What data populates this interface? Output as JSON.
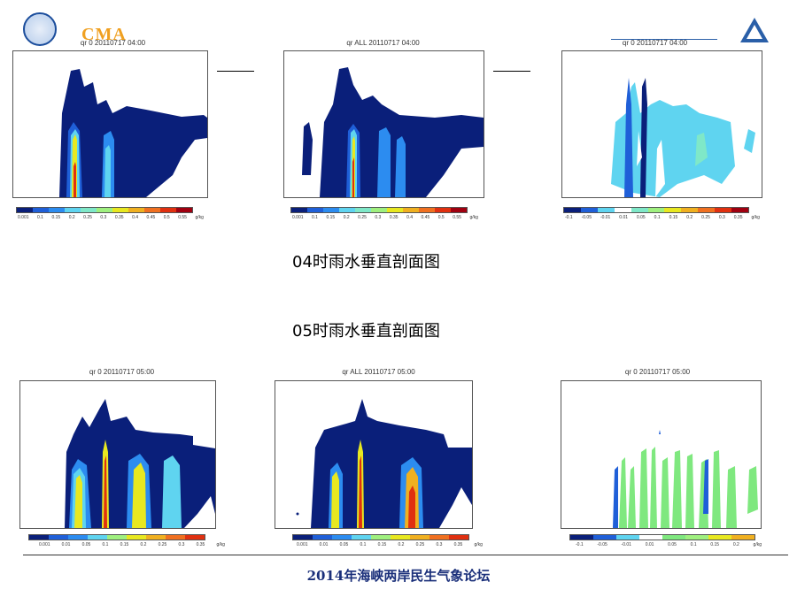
{
  "header": {
    "logo_text": "CMA"
  },
  "panels": [
    {
      "title": "qr 0 20110717 04:00",
      "cbar": [
        "0.001",
        "0.1",
        "0.15",
        "0.2",
        "0.25",
        "0.3",
        "0.35",
        "0.4",
        "0.45",
        "0.5",
        "0.55",
        "g/kg"
      ]
    },
    {
      "title": "qr ALL 20110717 04:00",
      "cbar": [
        "0.001",
        "0.1",
        "0.15",
        "0.2",
        "0.25",
        "0.3",
        "0.35",
        "0.4",
        "0.45",
        "0.5",
        "0.55",
        "g/kg"
      ]
    },
    {
      "title": "qr 0 20110717 04:00",
      "cbar": [
        "-0.1",
        "-0.05",
        "-0.01",
        "0.01",
        "0.05",
        "0.1",
        "0.15",
        "0.2",
        "0.25",
        "0.3",
        "0.35",
        "g/kg"
      ]
    },
    {
      "title": "qr 0 20110717 05:00",
      "cbar": [
        "0.001",
        "0.01",
        "0.05",
        "0.1",
        "0.15",
        "0.2",
        "0.25",
        "0.3",
        "0.35",
        "g/kg"
      ]
    },
    {
      "title": "qr ALL 20110717 05:00",
      "cbar": [
        "0.001",
        "0.01",
        "0.05",
        "0.1",
        "0.15",
        "0.2",
        "0.25",
        "0.3",
        "0.35",
        "g/kg"
      ]
    },
    {
      "title": "qr 0 20110717 05:00",
      "cbar": [
        "-0.1",
        "-0.05",
        "-0.01",
        "0.01",
        "0.05",
        "0.1",
        "0.15",
        "0.2",
        "g/kg"
      ]
    }
  ],
  "captions": {
    "h04": "04时雨水垂直剖面图",
    "h05": "05时雨水垂直剖面图"
  },
  "footer": {
    "text": "2014年海峡两岸民生气象论坛"
  },
  "colors": {
    "accent": "#1a2f7a",
    "dark_blue": "#0a1f7a",
    "light_cyan": "#5fd4f0",
    "green": "#7fe87f"
  }
}
